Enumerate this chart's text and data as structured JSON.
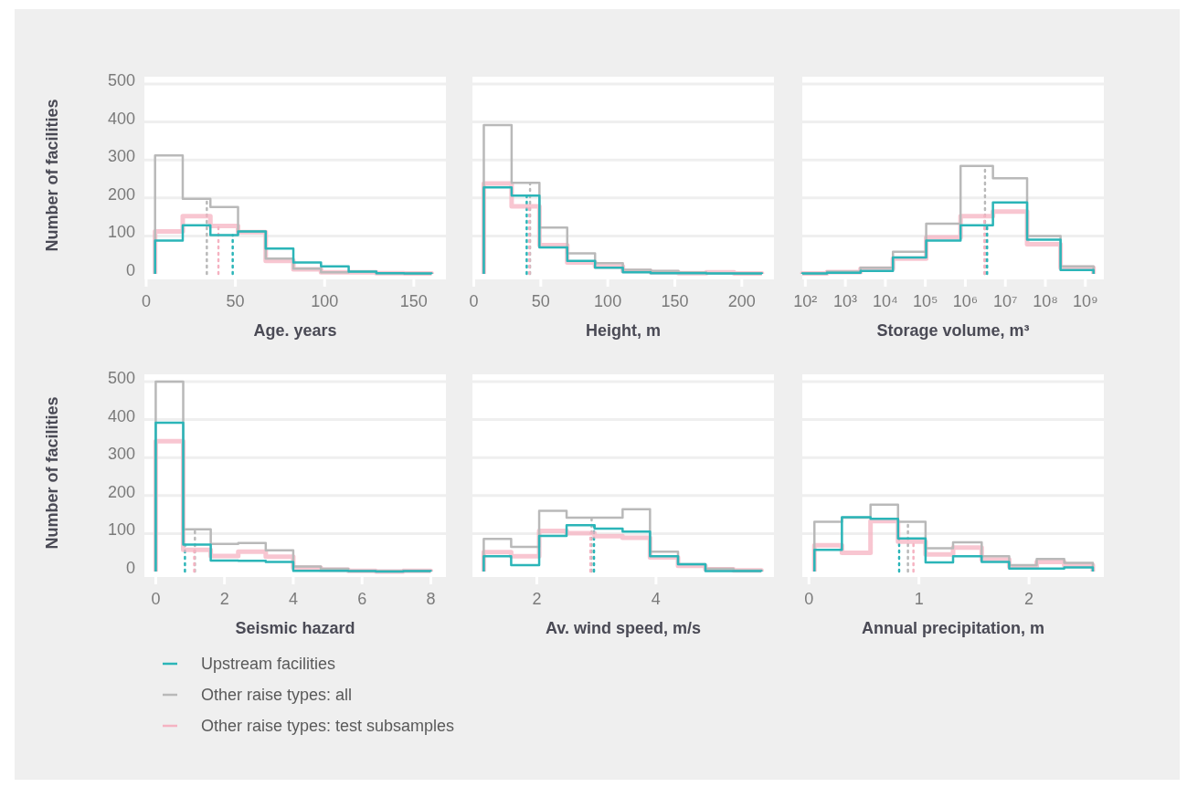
{
  "chart_data": [
    {
      "type": "histogram",
      "xlabel": "Age. years",
      "ylabel": "Number of facilities",
      "bins": [
        5,
        20.5,
        36,
        51.5,
        67,
        82.5,
        98,
        113.5,
        129,
        144.5,
        160
      ],
      "xlim": [
        -1,
        168
      ],
      "xticks": [
        0,
        50,
        100,
        150
      ],
      "ylim": [
        0,
        500
      ],
      "yticks": [
        0,
        100,
        200,
        300,
        400,
        500
      ],
      "grid": "y",
      "series": [
        {
          "color": "#2bb5b8",
          "values": [
            88,
            128,
            102,
            112,
            67,
            30,
            20,
            6,
            2,
            1
          ]
        },
        {
          "color": "#b9b9b9",
          "values": [
            312,
            198,
            176,
            112,
            40,
            14,
            4,
            6,
            2,
            1
          ]
        },
        {
          "color": "#f5b3c2",
          "values": [
            112,
            152,
            126,
            110,
            34,
            12,
            4,
            4,
            2,
            1
          ]
        }
      ],
      "ref_lines": [
        {
          "axis": "x",
          "value": 34,
          "color": "#b9b9b9",
          "line_style": "dotted"
        },
        {
          "axis": "x",
          "value": 40.5,
          "color": "#f5b3c2",
          "line_style": "dotted"
        },
        {
          "axis": "x",
          "value": 48.5,
          "color": "#2bb5b8",
          "line_style": "dotted"
        }
      ]
    },
    {
      "type": "histogram",
      "xlabel": "Height, m",
      "bins": [
        7.5,
        28.25,
        49,
        69.75,
        90.5,
        111.25,
        132,
        152.75,
        173.5,
        194.25,
        215
      ],
      "xlim": [
        -1,
        224
      ],
      "xticks": [
        0,
        50,
        100,
        150,
        200
      ],
      "ylim": [
        0,
        500
      ],
      "yticks": [
        0,
        100,
        200,
        300,
        400,
        500
      ],
      "grid": "y",
      "tick_labels": "x",
      "series": [
        {
          "color": "#2bb5b8",
          "values": [
            228,
            206,
            70,
            34,
            16,
            4,
            2,
            2,
            1,
            1
          ]
        },
        {
          "color": "#b9b9b9",
          "values": [
            392,
            240,
            122,
            54,
            28,
            11,
            8,
            4,
            2,
            1
          ]
        },
        {
          "color": "#f5b3c2",
          "values": [
            238,
            178,
            76,
            30,
            20,
            8,
            4,
            2,
            4,
            1
          ]
        }
      ],
      "ref_lines": [
        {
          "axis": "x",
          "value": 42,
          "color": "#b9b9b9",
          "line_style": "dotted"
        },
        {
          "axis": "x",
          "value": 41.5,
          "color": "#f5b3c2",
          "line_style": "dotted"
        },
        {
          "axis": "x",
          "value": 39.5,
          "color": "#2bb5b8",
          "line_style": "dotted"
        }
      ]
    },
    {
      "type": "histogram",
      "xlabel": "Storage volume, m³",
      "log": "x",
      "bins": [
        84,
        347,
        2400,
        15500,
        105000,
        760000,
        4900000,
        35000000,
        240000000,
        1600000000
      ],
      "xlim": [
        84,
        2900000000
      ],
      "xticks": [
        {
          "value": 100,
          "label": "10²"
        },
        {
          "value": 1000,
          "label": "10³"
        },
        {
          "value": 10000,
          "label": "10⁴"
        },
        {
          "value": 100000,
          "label": "10⁵"
        },
        {
          "value": 1000000,
          "label": "10⁶"
        },
        {
          "value": 10000000,
          "label": "10⁷"
        },
        {
          "value": 100000000,
          "label": "10⁸"
        },
        {
          "value": 1000000000,
          "label": "10⁹"
        }
      ],
      "ylim": [
        0,
        500
      ],
      "yticks": [
        0,
        100,
        200,
        300,
        400,
        500
      ],
      "grid": "y",
      "tick_labels": "x",
      "series": [
        {
          "color": "#2bb5b8",
          "values": [
            1,
            3,
            8,
            43,
            88,
            128,
            188,
            90,
            10
          ]
        },
        {
          "color": "#b9b9b9",
          "values": [
            1,
            6,
            16,
            58,
            132,
            284,
            252,
            100,
            20
          ]
        },
        {
          "color": "#f5b3c2",
          "values": [
            1,
            5,
            14,
            40,
            96,
            152,
            164,
            78,
            16
          ]
        }
      ],
      "ref_lines": [
        {
          "axis": "x",
          "value": 3100000,
          "color": "#b9b9b9",
          "line_style": "dotted"
        },
        {
          "axis": "x",
          "value": 3000000,
          "color": "#f5b3c2",
          "line_style": "dotted"
        },
        {
          "axis": "x",
          "value": 3500000,
          "color": "#2bb5b8",
          "line_style": "dotted"
        }
      ]
    },
    {
      "type": "histogram",
      "xlabel": "Seismic hazard",
      "ylabel": "Number of facilities",
      "bins": [
        0,
        0.8,
        1.6,
        2.4,
        3.2,
        4,
        4.8,
        5.6,
        6.4,
        7.2,
        8
      ],
      "xlim": [
        -0.33,
        8.44
      ],
      "xticks": [
        0,
        2,
        4,
        6,
        8
      ],
      "ylim": [
        0,
        500
      ],
      "yticks": [
        0,
        100,
        200,
        300,
        400,
        500
      ],
      "grid": "y",
      "legend": "bottom",
      "series": [
        {
          "name": "Upstream facilities",
          "color": "#2bb5b8",
          "values": [
            392,
            71,
            29,
            28,
            25,
            2,
            2,
            1,
            0,
            1
          ]
        },
        {
          "name": "Other raise types: all",
          "color": "#b9b9b9",
          "values": [
            500,
            111,
            73,
            75,
            56,
            13,
            7,
            2,
            1,
            2
          ]
        },
        {
          "name": "Other raise types: test subsamples",
          "color": "#f5b3c2",
          "values": [
            343,
            57,
            41,
            52,
            39,
            10,
            5,
            2,
            0,
            2
          ]
        }
      ],
      "ref_lines": [
        {
          "axis": "x",
          "value": 1.14,
          "color": "#b9b9b9",
          "line_style": "dotted"
        },
        {
          "axis": "x",
          "value": 1.12,
          "color": "#f5b3c2",
          "line_style": "dotted"
        },
        {
          "axis": "x",
          "value": 0.85,
          "color": "#2bb5b8",
          "line_style": "dotted"
        }
      ]
    },
    {
      "type": "histogram",
      "xlabel": "Av. wind speed, m/s",
      "bins": [
        1.11,
        1.57,
        2.04,
        2.5,
        2.97,
        3.44,
        3.9,
        4.37,
        4.83,
        5.3,
        5.77
      ],
      "xlim": [
        0.92,
        5.98
      ],
      "xticks": [
        2,
        4
      ],
      "ylim": [
        0,
        500
      ],
      "yticks": [
        0,
        100,
        200,
        300,
        400,
        500
      ],
      "grid": "y",
      "tick_labels": "x",
      "series": [
        {
          "color": "#2bb5b8",
          "values": [
            40,
            17,
            94,
            122,
            113,
            105,
            40,
            19,
            1,
            1
          ]
        },
        {
          "color": "#b9b9b9",
          "values": [
            86,
            65,
            160,
            142,
            142,
            164,
            52,
            19,
            7,
            3
          ]
        },
        {
          "color": "#f5b3c2",
          "values": [
            51,
            40,
            107,
            101,
            93,
            89,
            37,
            15,
            6,
            3
          ]
        }
      ],
      "ref_lines": [
        {
          "axis": "x",
          "value": 2.92,
          "color": "#b9b9b9",
          "line_style": "dotted"
        },
        {
          "axis": "x",
          "value": 2.9,
          "color": "#f5b3c2",
          "line_style": "dotted"
        },
        {
          "axis": "x",
          "value": 2.96,
          "color": "#2bb5b8",
          "line_style": "dotted"
        }
      ]
    },
    {
      "type": "histogram",
      "xlabel": "Annual precipitation, m",
      "bins": [
        0.05,
        0.3,
        0.56,
        0.81,
        1.06,
        1.31,
        1.57,
        1.82,
        2.07,
        2.32,
        2.58
      ],
      "xlim": [
        -0.06,
        2.68
      ],
      "xticks": [
        0,
        1,
        2
      ],
      "ylim": [
        0,
        500
      ],
      "yticks": [
        0,
        100,
        200,
        300,
        400,
        500
      ],
      "grid": "y",
      "tick_labels": "x",
      "series": [
        {
          "color": "#2bb5b8",
          "values": [
            57,
            143,
            139,
            87,
            24,
            40,
            25,
            8,
            8,
            11
          ]
        },
        {
          "color": "#b9b9b9",
          "values": [
            131,
            142,
            176,
            131,
            61,
            77,
            40,
            17,
            33,
            23
          ]
        },
        {
          "color": "#f5b3c2",
          "values": [
            69,
            49,
            133,
            79,
            45,
            63,
            32,
            13,
            25,
            17
          ]
        }
      ],
      "ref_lines": [
        {
          "axis": "x",
          "value": 0.9,
          "color": "#b9b9b9",
          "line_style": "dotted"
        },
        {
          "axis": "x",
          "value": 0.95,
          "color": "#f5b3c2",
          "line_style": "dotted"
        },
        {
          "axis": "x",
          "value": 0.82,
          "color": "#2bb5b8",
          "line_style": "dotted"
        }
      ]
    }
  ]
}
